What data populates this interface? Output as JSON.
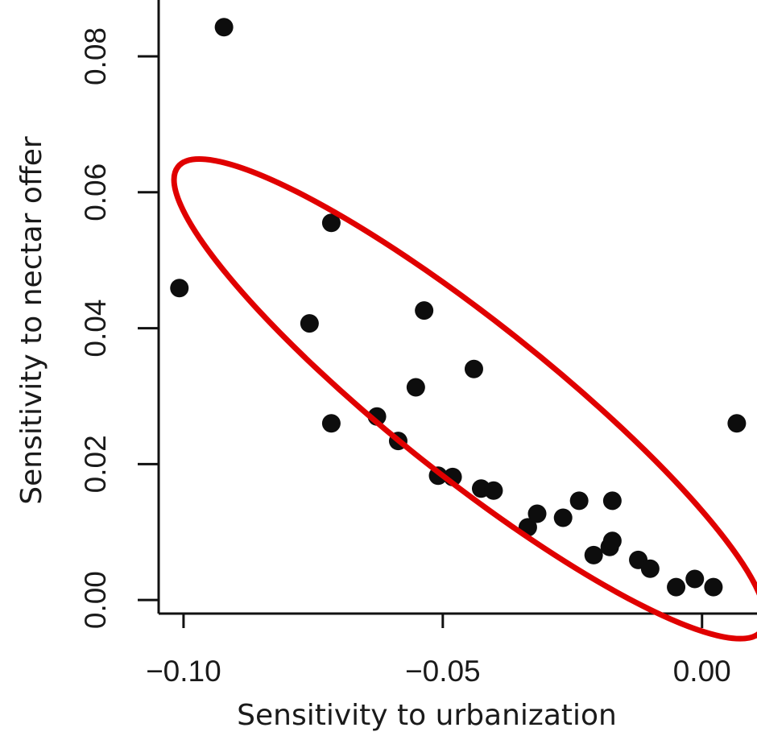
{
  "chart_data": {
    "type": "scatter",
    "title": "",
    "xlabel": "Sensitivity to urbanization",
    "ylabel": "Sensitivity to nectar offer",
    "xlim": [
      -0.1048,
      0.0106
    ],
    "ylim": [
      -0.002,
      0.0883
    ],
    "xticks": [
      -0.1,
      -0.05,
      0.0
    ],
    "xtick_labels": [
      "−0.10",
      "−0.05",
      "0.00"
    ],
    "yticks": [
      0.0,
      0.02,
      0.04,
      0.06,
      0.08
    ],
    "ytick_labels": [
      "0.00",
      "0.02",
      "0.04",
      "0.06",
      "0.08"
    ],
    "grid": false,
    "marker_color": "#0d0d0d",
    "points": [
      {
        "x": -0.0922,
        "y": 0.0843
      },
      {
        "x": -0.1008,
        "y": 0.0459
      },
      {
        "x": -0.0715,
        "y": 0.0555
      },
      {
        "x": -0.0757,
        "y": 0.0407
      },
      {
        "x": -0.0715,
        "y": 0.026
      },
      {
        "x": -0.0536,
        "y": 0.0426
      },
      {
        "x": -0.044,
        "y": 0.034
      },
      {
        "x": -0.0552,
        "y": 0.0313
      },
      {
        "x": -0.0627,
        "y": 0.027
      },
      {
        "x": -0.0586,
        "y": 0.0234
      },
      {
        "x": -0.0509,
        "y": 0.0183
      },
      {
        "x": -0.0481,
        "y": 0.0181
      },
      {
        "x": -0.0426,
        "y": 0.0164
      },
      {
        "x": -0.0402,
        "y": 0.0161
      },
      {
        "x": -0.0336,
        "y": 0.0107
      },
      {
        "x": -0.0318,
        "y": 0.0127
      },
      {
        "x": -0.0268,
        "y": 0.0121
      },
      {
        "x": -0.0237,
        "y": 0.0146
      },
      {
        "x": -0.0173,
        "y": 0.0146
      },
      {
        "x": -0.0209,
        "y": 0.0066
      },
      {
        "x": -0.0178,
        "y": 0.0078
      },
      {
        "x": -0.0173,
        "y": 0.0087
      },
      {
        "x": -0.0123,
        "y": 0.0059
      },
      {
        "x": -0.01,
        "y": 0.0046
      },
      {
        "x": -0.005,
        "y": 0.0019
      },
      {
        "x": -0.0014,
        "y": 0.0031
      },
      {
        "x": 0.0022,
        "y": 0.0019
      },
      {
        "x": 0.0067,
        "y": 0.026
      }
    ],
    "annotation": {
      "shape": "ellipse",
      "stroke": "#e00000",
      "center": [
        -0.0448,
        0.0296
      ],
      "semi_axes": [
        0.0636,
        0.0124
      ],
      "rotation_deg": 38.5
    }
  }
}
